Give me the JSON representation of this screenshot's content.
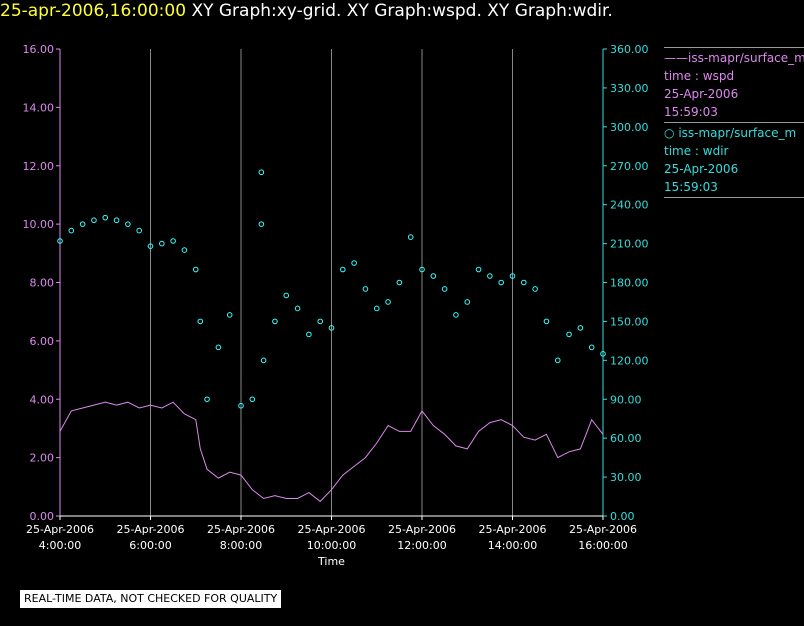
{
  "header": {
    "timestamp": "25-apr-2006,16:00:00",
    "title": "XY Graph:xy-grid.  XY Graph:wspd.  XY Graph:wdir.",
    "timestamp_color": "#ffff33"
  },
  "legend": {
    "wspd": {
      "symbol": "——",
      "source": "iss-mapr/surface_m",
      "var": "time : wspd",
      "date": "25-Apr-2006",
      "time": "15:59:03"
    },
    "wdir": {
      "symbol": "○",
      "source": "iss-mapr/surface_m",
      "var": "time : wdir",
      "date": "25-Apr-2006",
      "time": "15:59:03"
    }
  },
  "notice": "REAL-TIME DATA, NOT CHECKED FOR QUALITY",
  "chart_data": {
    "type": "scatter",
    "xlabel": "Time",
    "x_ticks": [
      {
        "t": 4,
        "date": "25-Apr-2006",
        "time": "4:00:00"
      },
      {
        "t": 6,
        "date": "25-Apr-2006",
        "time": "6:00:00"
      },
      {
        "t": 8,
        "date": "25-Apr-2006",
        "time": "8:00:00"
      },
      {
        "t": 10,
        "date": "25-Apr-2006",
        "time": "10:00:00"
      },
      {
        "t": 12,
        "date": "25-Apr-2006",
        "time": "12:00:00"
      },
      {
        "t": 14,
        "date": "25-Apr-2006",
        "time": "14:00:00"
      },
      {
        "t": 16,
        "date": "25-Apr-2006",
        "time": "16:00:00"
      }
    ],
    "xlim": [
      4,
      16
    ],
    "grid": "vertical",
    "left_axis": {
      "ylim": [
        0,
        16
      ],
      "ticks": [
        "0.00",
        "2.00",
        "4.00",
        "6.00",
        "8.00",
        "10.00",
        "12.00",
        "14.00",
        "16.00"
      ],
      "color": "#dd88ee"
    },
    "right_axis": {
      "ylim": [
        0,
        360
      ],
      "ticks": [
        "0.00",
        "30.00",
        "60.00",
        "90.00",
        "120.00",
        "150.00",
        "180.00",
        "210.00",
        "240.00",
        "270.00",
        "300.00",
        "330.00",
        "360.00"
      ],
      "color": "#33dddd"
    },
    "series": [
      {
        "axis": "left",
        "style": "line",
        "color": "#dd88ee",
        "x": [
          4.0,
          4.25,
          4.5,
          4.75,
          5.0,
          5.25,
          5.5,
          5.75,
          6.0,
          6.25,
          6.5,
          6.75,
          7.0,
          7.1,
          7.25,
          7.5,
          7.75,
          8.0,
          8.25,
          8.5,
          8.75,
          9.0,
          9.25,
          9.5,
          9.75,
          10.0,
          10.25,
          10.5,
          10.75,
          11.0,
          11.25,
          11.5,
          11.75,
          12.0,
          12.25,
          12.5,
          12.75,
          13.0,
          13.25,
          13.5,
          13.75,
          14.0,
          14.25,
          14.5,
          14.75,
          15.0,
          15.25,
          15.5,
          15.75,
          16.0
        ],
        "y": [
          2.9,
          3.6,
          3.7,
          3.8,
          3.9,
          3.8,
          3.9,
          3.7,
          3.8,
          3.7,
          3.9,
          3.5,
          3.3,
          2.3,
          1.6,
          1.3,
          1.5,
          1.4,
          0.9,
          0.6,
          0.7,
          0.6,
          0.6,
          0.8,
          0.5,
          0.9,
          1.4,
          1.7,
          2.0,
          2.5,
          3.1,
          2.9,
          2.9,
          3.6,
          3.1,
          2.8,
          2.4,
          2.3,
          2.9,
          3.2,
          3.3,
          3.1,
          2.7,
          2.6,
          2.8,
          2.0,
          2.2,
          2.3,
          3.3,
          2.8
        ]
      },
      {
        "axis": "right",
        "style": "circles",
        "color": "#33ffff",
        "x": [
          4.0,
          4.25,
          4.5,
          4.75,
          5.0,
          5.25,
          5.5,
          5.75,
          6.0,
          6.25,
          6.5,
          6.75,
          7.0,
          7.1,
          7.25,
          7.5,
          7.75,
          8.0,
          8.25,
          8.5,
          8.75,
          9.0,
          9.25,
          9.5,
          9.75,
          10.0,
          10.25,
          10.5,
          10.75,
          11.0,
          11.25,
          11.5,
          11.75,
          12.0,
          12.25,
          12.5,
          12.75,
          13.0,
          13.25,
          13.5,
          13.75,
          14.0,
          14.25,
          14.5,
          14.75,
          15.0,
          15.25,
          15.5,
          15.75,
          16.0
        ],
        "y": [
          212,
          220,
          225,
          228,
          230,
          228,
          225,
          220,
          208,
          210,
          212,
          205,
          190,
          150,
          90,
          130,
          155,
          85,
          90,
          120,
          150,
          170,
          160,
          140,
          150,
          145,
          190,
          195,
          175,
          160,
          165,
          180,
          215,
          190,
          185,
          175,
          155,
          165,
          190,
          185,
          180,
          185,
          180,
          175,
          150,
          120,
          140,
          145,
          130,
          125
        ],
        "outliers": [
          {
            "x": 8.45,
            "y": 265
          },
          {
            "x": 8.45,
            "y": 225
          }
        ]
      }
    ]
  }
}
